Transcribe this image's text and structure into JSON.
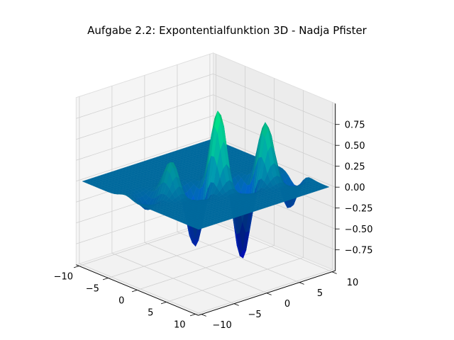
{
  "chart_data": {
    "type": "surface3d",
    "title": "Aufgabe 2.2: Expontentialfunktion 3D - Nadja Pfister",
    "xlabel": "",
    "ylabel": "",
    "zlabel": "",
    "x_ticks": [
      "−10",
      "−5",
      "0",
      "5",
      "10"
    ],
    "y_ticks": [
      "−10",
      "−5",
      "0",
      "5",
      "10"
    ],
    "z_ticks": [
      "−0.75",
      "−0.50",
      "−0.25",
      "0.00",
      "0.25",
      "0.50",
      "0.75"
    ],
    "x_range": [
      -10,
      10
    ],
    "y_range": [
      -10,
      10
    ],
    "z_range": [
      -1,
      1
    ],
    "colormap": "winter",
    "colormap_low": "#0000ff",
    "colormap_high": "#00ff80",
    "grid": true,
    "surface": {
      "description_values": {
        "peaks": [
          {
            "x": 0.5,
            "y": 1.5,
            "z": 0.85
          },
          {
            "x": 2.5,
            "y": 4.0,
            "z": 0.8
          },
          {
            "x": 4.0,
            "y": 6.5,
            "z": 0.6
          }
        ],
        "troughs": [
          {
            "x": 0.0,
            "y": -1.0,
            "z": -0.95
          },
          {
            "x": 2.0,
            "y": 2.0,
            "z": -0.9
          },
          {
            "x": 3.5,
            "y": 5.0,
            "z": -0.5
          }
        ],
        "baseline_z": 0.0
      }
    }
  }
}
